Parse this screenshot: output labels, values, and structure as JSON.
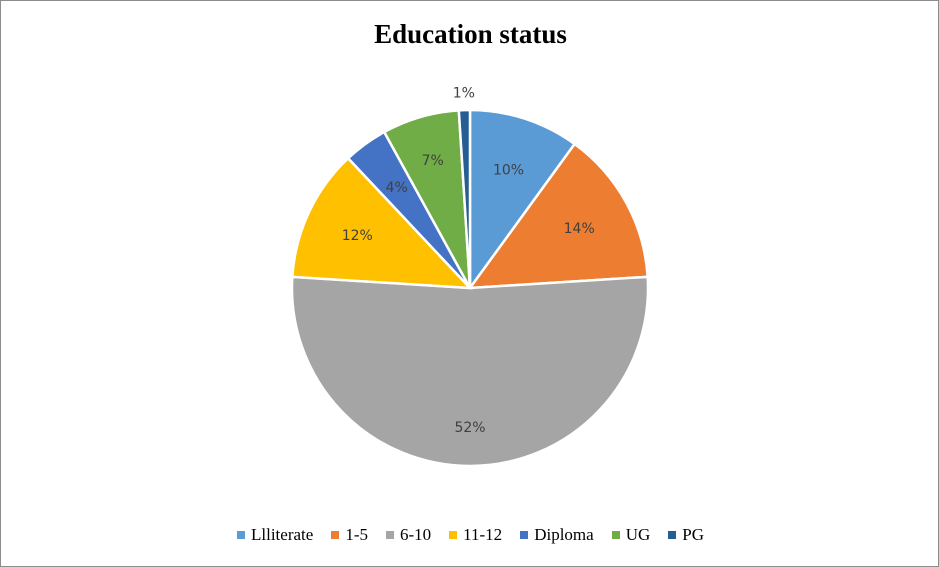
{
  "chart_data": {
    "type": "pie",
    "title": "Education status",
    "categories": [
      "Llliterate",
      "1-5",
      "6-10",
      "11-12",
      "Diploma",
      "UG",
      "PG"
    ],
    "values": [
      10,
      14,
      52,
      12,
      4,
      7,
      1
    ],
    "labels": [
      "10%",
      "14%",
      "52%",
      "12%",
      "4%",
      "7%",
      "1%"
    ],
    "colors": [
      "#5b9bd5",
      "#ed7d31",
      "#a5a5a5",
      "#ffc000",
      "#4472c4",
      "#70ad47",
      "#255e91"
    ],
    "legend_position": "bottom",
    "start_angle": "12 o'clock",
    "direction": "clockwise"
  }
}
